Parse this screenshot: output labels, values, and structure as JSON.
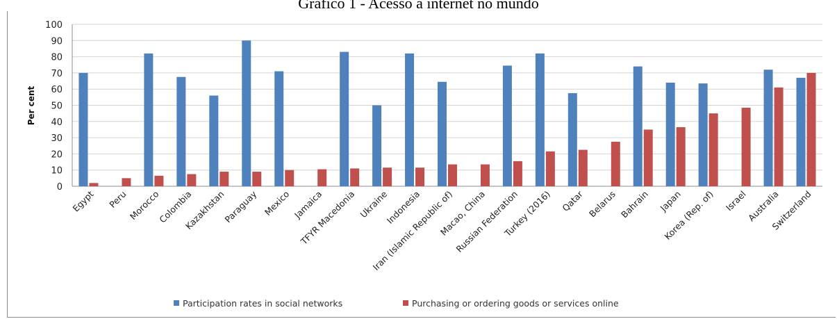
{
  "title": "Gráfico 1 - Acesso à internet no mundo",
  "chart_data": {
    "type": "bar",
    "ylabel": "Per cent",
    "ylim": [
      0,
      100
    ],
    "yticks": [
      0,
      10,
      20,
      30,
      40,
      50,
      60,
      70,
      80,
      90,
      100
    ],
    "grid": true,
    "legend_position": "bottom",
    "categories": [
      "Egypt",
      "Peru",
      "Morocco",
      "Colombia",
      "Kazakhstan",
      "Paraguay",
      "Mexico",
      "Jamaica",
      "TFYR Macedonia",
      "Ukraine",
      "Indonesia",
      "Iran (Islamic Republic of)",
      "Macao, China",
      "Russian Federation",
      "Turkey (2016)",
      "Qatar",
      "Belarus",
      "Bahrain",
      "Japan",
      "Korea (Rep. of)",
      "Israel",
      "Australia",
      "Switzerland"
    ],
    "series": [
      {
        "name": "Participation rates in social networks",
        "color": "#4f81bd",
        "values": [
          70,
          null,
          82,
          67.5,
          56,
          90,
          71,
          null,
          83,
          50,
          82,
          64.5,
          null,
          74.5,
          82,
          57.5,
          null,
          74,
          64,
          63.5,
          null,
          72,
          67
        ]
      },
      {
        "name": "Purchasing or ordering goods or services online",
        "color": "#c0504d",
        "values": [
          2,
          5,
          6.5,
          7.5,
          9,
          9,
          10,
          10.5,
          11,
          11.5,
          11.5,
          13.5,
          13.5,
          15.5,
          21.5,
          22.5,
          27.5,
          35,
          36.5,
          45,
          48.5,
          61,
          70
        ]
      }
    ]
  }
}
